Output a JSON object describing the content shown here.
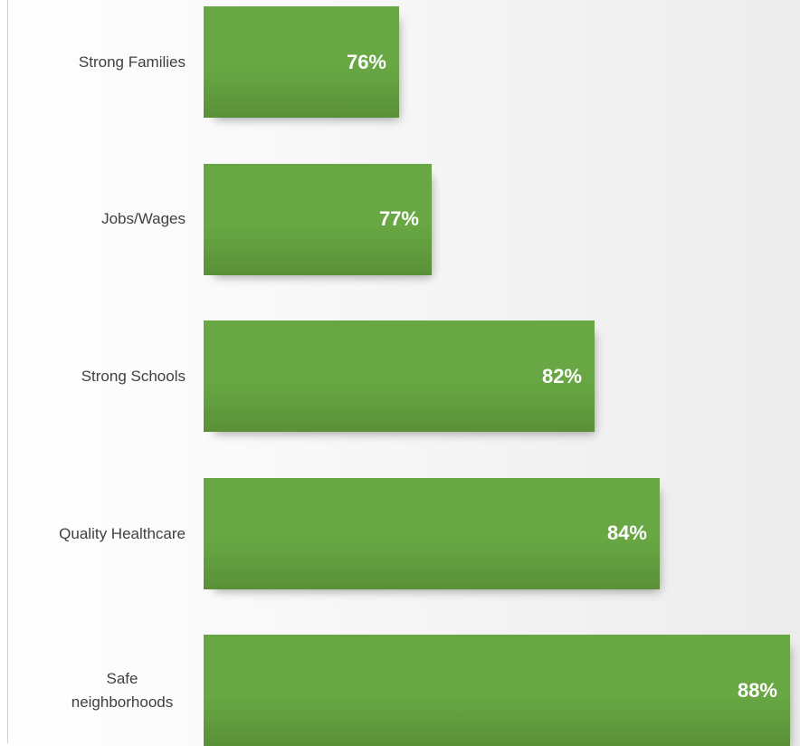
{
  "chart_data": {
    "type": "bar",
    "orientation": "horizontal",
    "categories": [
      "Strong Families",
      "Jobs/Wages",
      "Strong Schools",
      "Quality Healthcare",
      "Safe neighborhoods"
    ],
    "values": [
      76,
      77,
      82,
      84,
      88
    ],
    "value_labels": [
      "76%",
      "77%",
      "82%",
      "84%",
      "88%"
    ],
    "color": "#68a743",
    "xlim": [
      70,
      88
    ]
  }
}
